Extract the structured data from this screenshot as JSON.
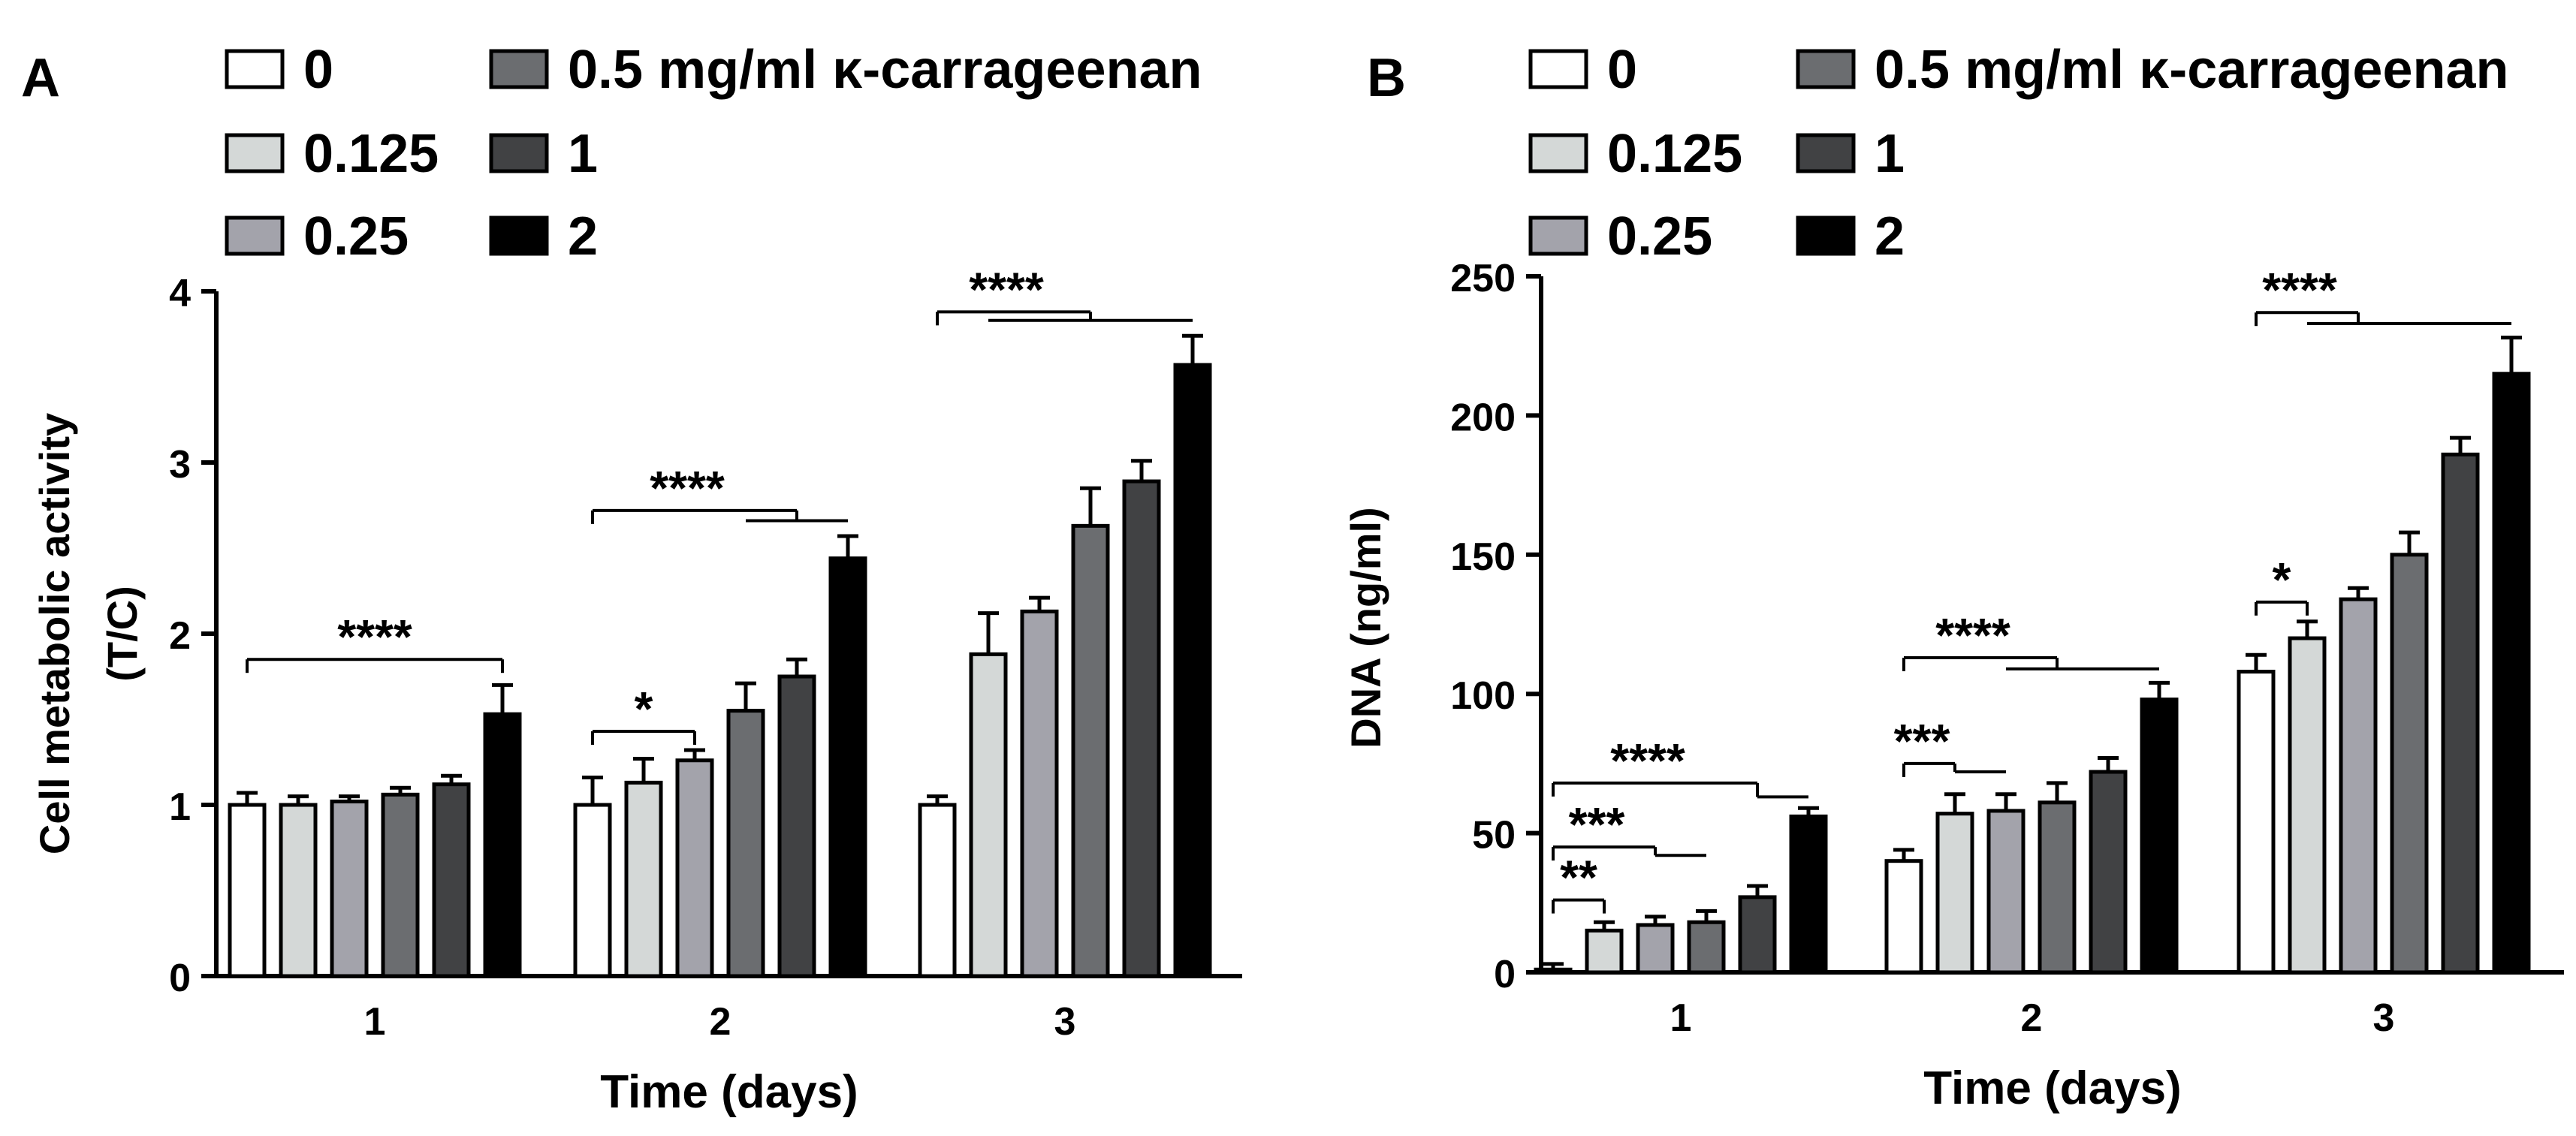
{
  "legend": {
    "suffix": "mg/ml κ-carrageenan",
    "entries": [
      {
        "label": "0",
        "color": "#ffffff"
      },
      {
        "label": "0.125",
        "color": "#d4d8d7"
      },
      {
        "label": "0.25",
        "color": "#a3a3ab"
      },
      {
        "label": "0.5",
        "color": "#6b6d70"
      },
      {
        "label": "1",
        "color": "#414244"
      },
      {
        "label": "2",
        "color": "#000000"
      }
    ]
  },
  "chart_data": [
    {
      "panel": "A",
      "type": "bar",
      "xlabel": "Time (days)",
      "ylabel_lines": [
        "Cell metabolic activity",
        "(T/C)"
      ],
      "ylim": [
        0,
        4
      ],
      "yticks": [
        0,
        1,
        2,
        3,
        4
      ],
      "categories": [
        "1",
        "2",
        "3"
      ],
      "series": [
        {
          "name": "0",
          "values": [
            1.0,
            1.0,
            1.0
          ],
          "errors": [
            0.07,
            0.16,
            0.05
          ]
        },
        {
          "name": "0.125",
          "values": [
            1.0,
            1.13,
            1.88
          ],
          "errors": [
            0.05,
            0.14,
            0.24
          ]
        },
        {
          "name": "0.25",
          "values": [
            1.02,
            1.26,
            2.13
          ],
          "errors": [
            0.03,
            0.06,
            0.08
          ]
        },
        {
          "name": "0.5",
          "values": [
            1.06,
            1.55,
            2.63
          ],
          "errors": [
            0.04,
            0.16,
            0.22
          ]
        },
        {
          "name": "1",
          "values": [
            1.12,
            1.75,
            2.89
          ],
          "errors": [
            0.05,
            0.1,
            0.12
          ]
        },
        {
          "name": "2",
          "values": [
            1.53,
            2.44,
            3.57
          ],
          "errors": [
            0.17,
            0.13,
            0.17
          ]
        }
      ],
      "annotations": [
        {
          "text": "****",
          "group": 0,
          "from": 0,
          "to": 5,
          "y": 1.85
        },
        {
          "text": "*",
          "group": 1,
          "from": 0,
          "to": 2,
          "y": 1.43
        },
        {
          "text": "****",
          "group": 1,
          "from": 0,
          "to": 4,
          "y": 2.72,
          "lower_from": 3,
          "lower_to": 5,
          "lower_y": 2.66
        },
        {
          "text": "****",
          "group": 2,
          "from": 0,
          "to": 3,
          "y": 3.88,
          "lower_from": 1,
          "lower_to": 5,
          "lower_y": 3.83
        }
      ]
    },
    {
      "panel": "B",
      "type": "bar",
      "xlabel": "Time (days)",
      "ylabel_lines": [
        "DNA (ng/ml)"
      ],
      "ylim": [
        0,
        250
      ],
      "yticks": [
        0,
        50,
        100,
        150,
        200,
        250
      ],
      "categories": [
        "1",
        "2",
        "3"
      ],
      "series": [
        {
          "name": "0",
          "values": [
            1,
            40,
            108
          ],
          "errors": [
            2,
            4,
            6
          ]
        },
        {
          "name": "0.125",
          "values": [
            15,
            57,
            120
          ],
          "errors": [
            3,
            7,
            6
          ]
        },
        {
          "name": "0.25",
          "values": [
            17,
            58,
            134
          ],
          "errors": [
            3,
            6,
            4
          ]
        },
        {
          "name": "0.5",
          "values": [
            18,
            61,
            150
          ],
          "errors": [
            4,
            7,
            8
          ]
        },
        {
          "name": "1",
          "values": [
            27,
            72,
            186
          ],
          "errors": [
            4,
            5,
            6
          ]
        },
        {
          "name": "2",
          "values": [
            56,
            98,
            215
          ],
          "errors": [
            3,
            6,
            13
          ]
        }
      ],
      "annotations": [
        {
          "text": "**",
          "group": 0,
          "from": 0,
          "to": 1,
          "y": 26
        },
        {
          "text": "***",
          "group": 0,
          "from": 0,
          "to": 2,
          "y": 45,
          "lower_from": 2,
          "lower_to": 3,
          "lower_y": 42
        },
        {
          "text": "****",
          "group": 0,
          "from": 0,
          "to": 4,
          "y": 68,
          "lower_from": 4,
          "lower_to": 5,
          "lower_y": 63
        },
        {
          "text": "***",
          "group": 1,
          "from": 0,
          "to": 1,
          "y": 75,
          "lower_from": 1,
          "lower_to": 2,
          "lower_y": 72
        },
        {
          "text": "****",
          "group": 1,
          "from": 0,
          "to": 3,
          "y": 113,
          "lower_from": 2,
          "lower_to": 5,
          "lower_y": 109
        },
        {
          "text": "*",
          "group": 2,
          "from": 0,
          "to": 1,
          "y": 133
        },
        {
          "text": "****",
          "group": 2,
          "from": 0,
          "to": 2,
          "y": 237,
          "lower_from": 1,
          "lower_to": 5,
          "lower_y": 233
        }
      ]
    }
  ]
}
